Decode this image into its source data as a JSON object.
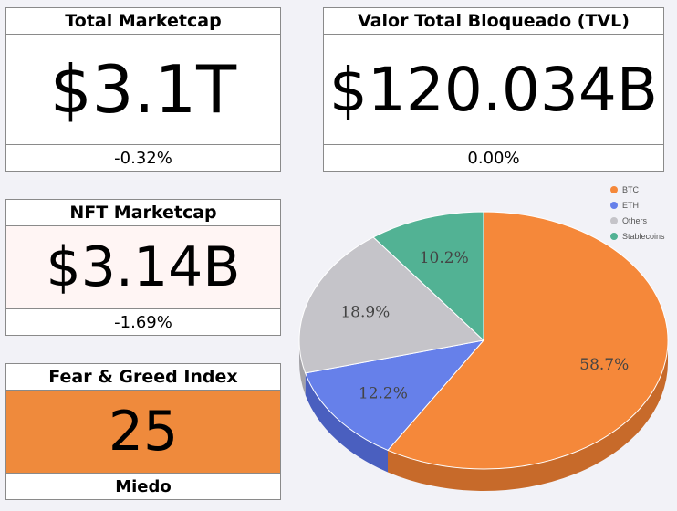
{
  "cards": {
    "total_marketcap": {
      "title": "Total Marketcap",
      "value": "$3.1T",
      "change": "-0.32%"
    },
    "tvl": {
      "title": "Valor Total Bloqueado (TVL)",
      "value": "$120.034B",
      "change": "0.00%"
    },
    "nft_marketcap": {
      "title": "NFT Marketcap",
      "value": "$3.14B",
      "change": "-1.69%"
    },
    "fear_greed": {
      "title": "Fear & Greed Index",
      "value": "25",
      "status": "Miedo"
    }
  },
  "chart_data": {
    "type": "pie",
    "categories": [
      "BTC",
      "ETH",
      "Others",
      "Stablecoins"
    ],
    "values": [
      58.7,
      12.2,
      18.9,
      10.2
    ],
    "labels": [
      "58.7%",
      "12.2%",
      "18.9%",
      "10.2%"
    ],
    "colors": [
      "#f5883a",
      "#6680ea",
      "#c5c4c9",
      "#52b294"
    ],
    "side_colors": [
      "#c76a2a",
      "#4a5fbf",
      "#a4a3a8",
      "#3e8f76"
    ],
    "legend_position": "top-right"
  }
}
